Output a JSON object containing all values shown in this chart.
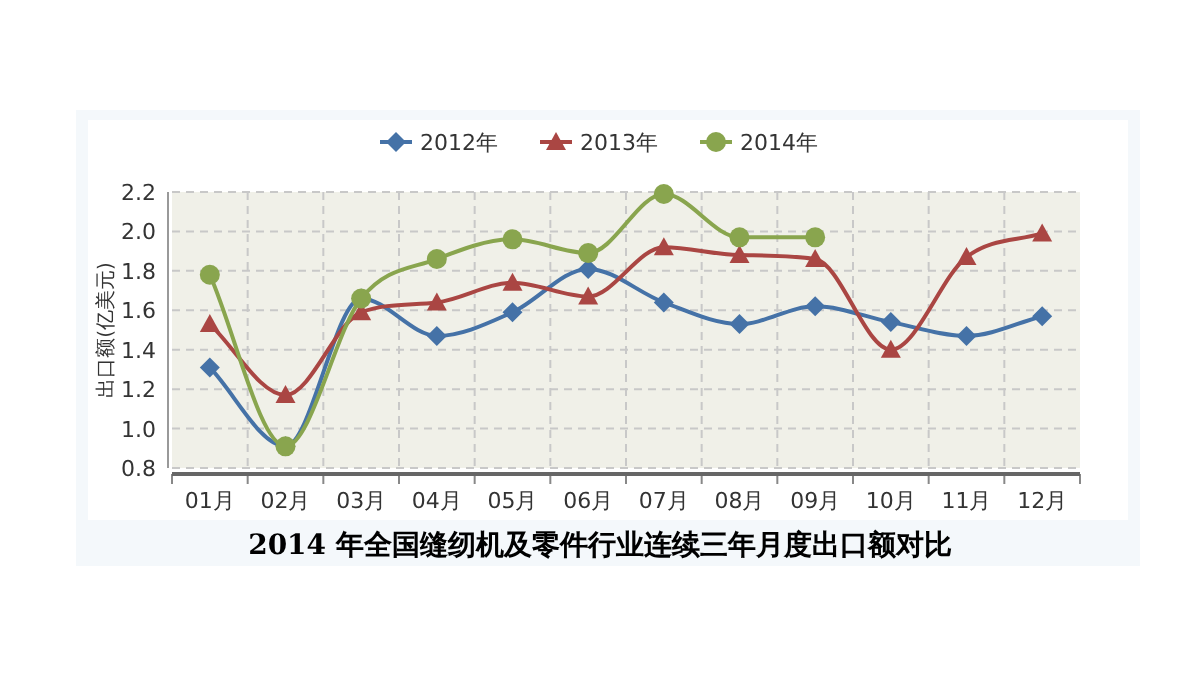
{
  "chart_data": {
    "type": "line",
    "title": "2014 年全国缝纫机及零件行业连续三年月度出口额对比",
    "ylabel": "出口额(亿美元)",
    "categories": [
      "01月",
      "02月",
      "03月",
      "04月",
      "05月",
      "06月",
      "07月",
      "08月",
      "09月",
      "10月",
      "11月",
      "12月"
    ],
    "series": [
      {
        "name": "2012年",
        "color": "#4572a7",
        "marker": "diamond",
        "values": [
          1.31,
          0.91,
          1.66,
          1.47,
          1.59,
          1.81,
          1.64,
          1.53,
          1.62,
          1.54,
          1.47,
          1.57
        ]
      },
      {
        "name": "2013年",
        "color": "#aa4643",
        "marker": "triangle",
        "values": [
          1.53,
          1.17,
          1.59,
          1.64,
          1.74,
          1.67,
          1.92,
          1.88,
          1.86,
          1.4,
          1.87,
          1.99
        ]
      },
      {
        "name": "2014年",
        "color": "#89a54e",
        "marker": "circle",
        "values": [
          1.78,
          0.91,
          1.66,
          1.86,
          1.96,
          1.89,
          2.19,
          1.97,
          1.97,
          null,
          null,
          null
        ]
      }
    ],
    "ylim": [
      0.8,
      2.2
    ],
    "yticks": [
      0.8,
      {
        "value": 1,
        "label": "1.0"
      },
      1.2,
      1.4,
      1.6,
      1.8,
      {
        "value": 2,
        "label": "2.0"
      },
      2.2
    ],
    "grid": true,
    "legend": "top"
  }
}
